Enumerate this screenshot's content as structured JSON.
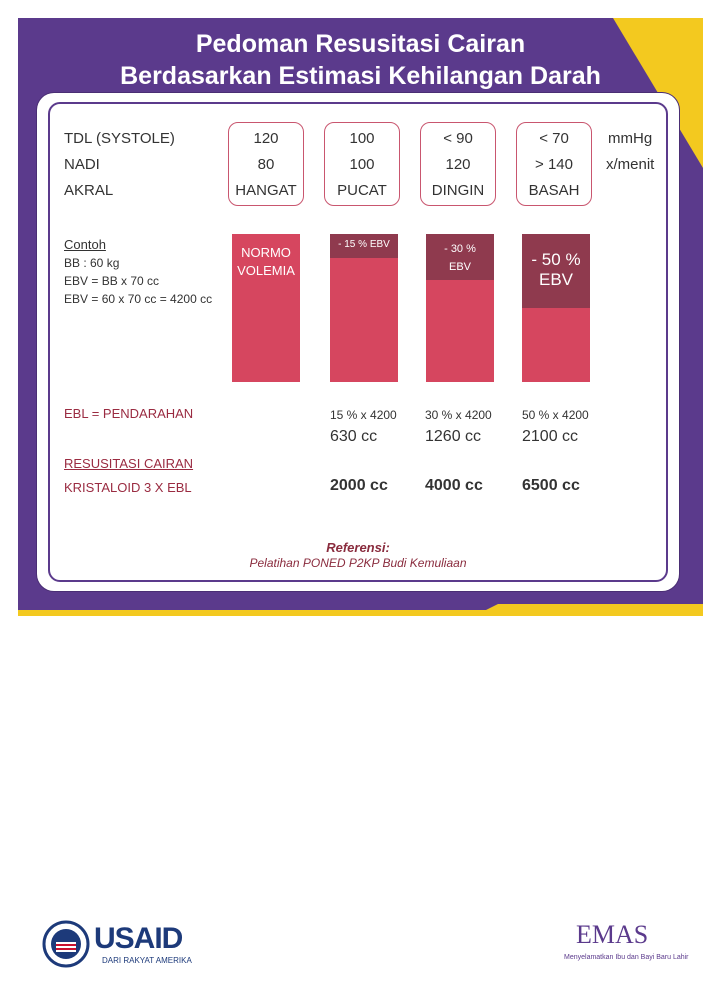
{
  "title": {
    "line1": "Pedoman Resusitasi Cairan",
    "line2": "Berdasarkan Estimasi Kehilangan Darah"
  },
  "rows": {
    "tdl_label": "TDL (SYSTOLE)",
    "nadi_label": "NADI",
    "akral_label": "AKRAL",
    "tdl_unit": "mmHg",
    "nadi_unit": "x/menit"
  },
  "columns": [
    {
      "tdl": "120",
      "nadi": "80",
      "akral": "HANGAT",
      "bar_label_line1": "NORMO",
      "bar_label_line2": "VOLEMIA",
      "ebl_calc": "",
      "ebl_value": "",
      "kristaloid": ""
    },
    {
      "tdl": "100",
      "nadi": "100",
      "akral": "PUCAT",
      "bar_label_line1": "- 15 % EBV",
      "bar_label_line2": "",
      "ebl_calc": "15 % x 4200",
      "ebl_value": "630 cc",
      "kristaloid": "2000 cc"
    },
    {
      "tdl": "< 90",
      "nadi": "120",
      "akral": "DINGIN",
      "bar_label_line1": "- 30 %",
      "bar_label_line2": "EBV",
      "ebl_calc": "30 % x 4200",
      "ebl_value": "1260 cc",
      "kristaloid": "4000 cc"
    },
    {
      "tdl": "< 70",
      "nadi": "> 140",
      "akral": "BASAH",
      "bar_label_line1": "- 50 %",
      "bar_label_line2": "EBV",
      "ebl_calc": "50 % x 4200",
      "ebl_value": "2100 cc",
      "kristaloid": "6500 cc"
    }
  ],
  "example": {
    "heading": "Contoh",
    "line1": "BB : 60 kg",
    "line2": "EBV = BB x 70 cc",
    "line3": "EBV = 60 x 70 cc = 4200 cc"
  },
  "ebl_label": "EBL = PENDARAHAN",
  "resusitasi_label": "RESUSITASI CAIRAN",
  "kristaloid_label": "KRISTALOID 3 X EBL",
  "reference": {
    "heading": "Referensi:",
    "text": "Pelatihan PONED P2KP Budi Kemuliaan"
  },
  "logos": {
    "usaid_name": "USAID",
    "usaid_tagline": "DARI RAKYAT AMERIKA",
    "emas_name": "EMAS",
    "emas_tagline": "Menyelamatkan Ibu dan Bayi Baru Lahir"
  },
  "colors": {
    "purple": "#5b3a8c",
    "yellow": "#f3c91f",
    "bar_red": "#d6465f",
    "bar_dark": "#8f3a4e"
  }
}
